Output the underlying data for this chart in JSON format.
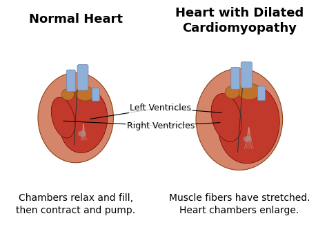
{
  "bg_color": "#ffffff",
  "title_left": "Normal Heart",
  "title_right": "Heart with Dilated\nCardiomyopathy",
  "label_left_ventricle": "Left Ventricles",
  "label_right_ventricle": "Right Ventricles",
  "caption_left": "Chambers relax and fill,\nthen contract and pump.",
  "caption_right": "Muscle fibers have stretched.\nHeart chambers enlarge.",
  "title_fontsize": 13,
  "caption_fontsize": 10,
  "label_fontsize": 9,
  "figsize": [
    4.74,
    3.55
  ],
  "dpi": 100,
  "heart_normal_color": "#c0392b",
  "heart_dilated_color": "#c0392b",
  "heart_wall_color": "#d4856a",
  "aorta_color": "#8fafd6",
  "highlight_red": "#8b0000"
}
